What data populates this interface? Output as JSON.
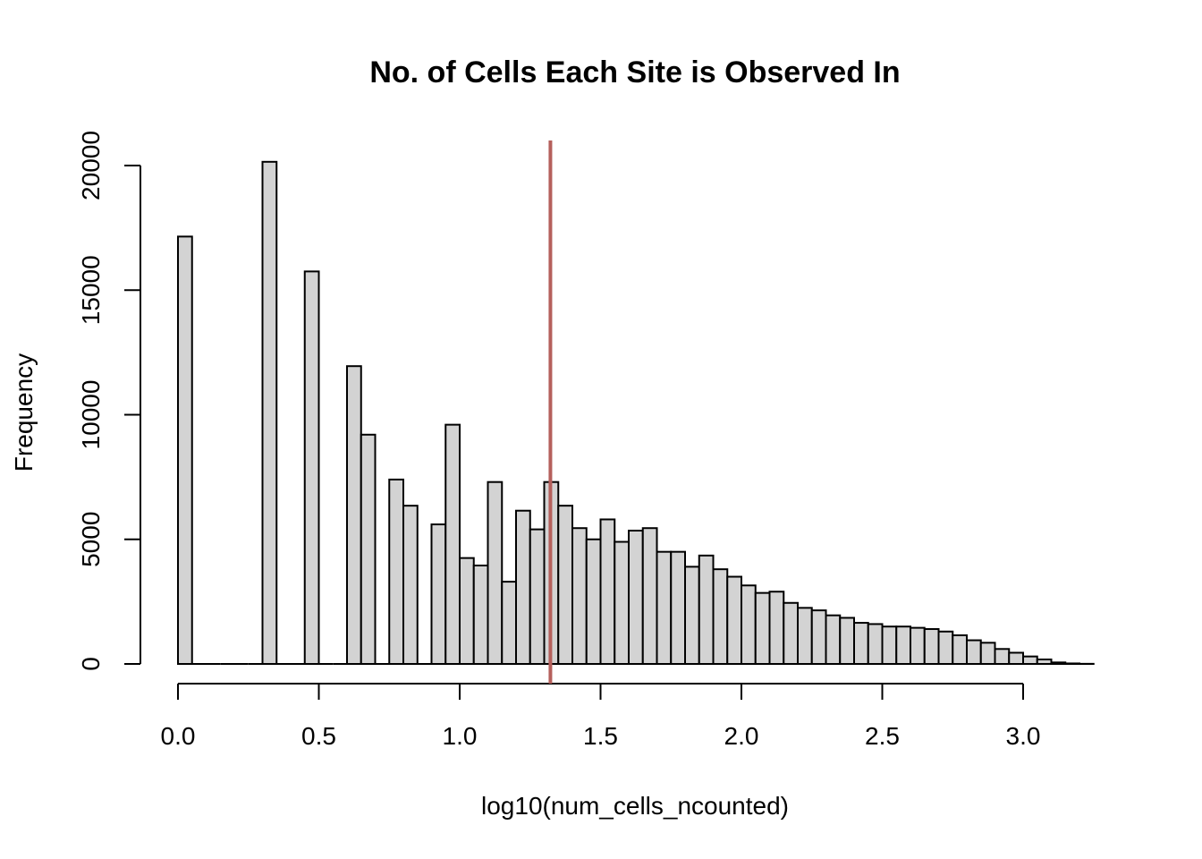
{
  "chart_data": {
    "type": "bar",
    "title": "No. of Cells Each Site is Observed In",
    "xlabel": "log10(num_cells_ncounted)",
    "ylabel": "Frequency",
    "x_ticks": [
      0.0,
      0.5,
      1.0,
      1.5,
      2.0,
      2.5,
      3.0
    ],
    "x_tick_labels": [
      "0.0",
      "0.5",
      "1.0",
      "1.5",
      "2.0",
      "2.5",
      "3.0"
    ],
    "y_ticks": [
      0,
      5000,
      10000,
      15000,
      20000
    ],
    "y_tick_labels": [
      "0",
      "5000",
      "10000",
      "15000",
      "20000"
    ],
    "xlim": [
      0,
      3.25
    ],
    "ylim": [
      0,
      20000
    ],
    "bin_width": 0.05,
    "bin_start": 0,
    "values": [
      17150,
      0,
      0,
      0,
      0,
      0,
      20150,
      0,
      0,
      15750,
      0,
      0,
      11950,
      9200,
      0,
      7400,
      6350,
      0,
      5600,
      9600,
      4250,
      3950,
      7300,
      3300,
      6150,
      5400,
      7300,
      6350,
      5450,
      5000,
      5800,
      4900,
      5350,
      5450,
      4500,
      4500,
      3900,
      4350,
      3800,
      3500,
      3150,
      2850,
      2900,
      2450,
      2250,
      2150,
      1950,
      1850,
      1650,
      1600,
      1500,
      1500,
      1450,
      1400,
      1300,
      1150,
      950,
      850,
      600,
      450,
      300,
      180,
      60,
      20,
      5
    ],
    "reference_line": {
      "x": 1.322,
      "color": "#b5605c"
    },
    "bar_fill": "#d3d3d3",
    "bar_stroke": "#000000",
    "grid": false,
    "legend": "none"
  }
}
